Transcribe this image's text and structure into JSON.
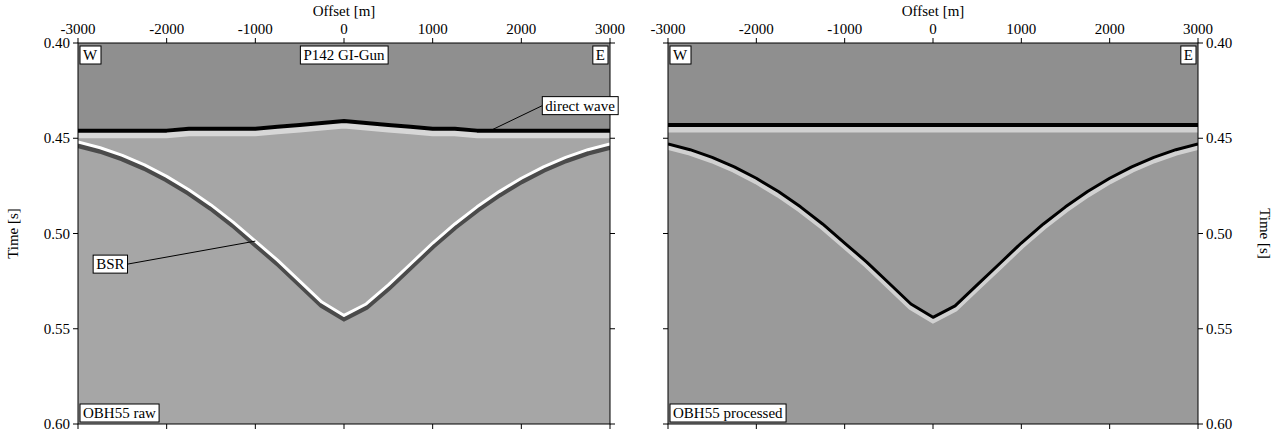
{
  "chart_data": [
    {
      "type": "line",
      "title": "P142 GI-Gun",
      "panel_label": "OBH55 raw",
      "west_label": "W",
      "east_label": "E",
      "xlabel": "Offset [m]",
      "ylabel": "Time [s]",
      "xlim": [
        -3000,
        3000
      ],
      "xticks": [
        -3000,
        -2000,
        -1000,
        0,
        1000,
        2000,
        3000
      ],
      "ylim": [
        0.6,
        0.4
      ],
      "yticks": [
        {
          "value": 0.4,
          "label": "0.40"
        },
        0.45,
        {
          "value": 0.5,
          "label": "0.50"
        },
        0.55,
        {
          "value": 0.6,
          "label": "0.60"
        }
      ],
      "x": [
        -3000,
        -2750,
        -2500,
        -2250,
        -2000,
        -1750,
        -1500,
        -1250,
        -1000,
        -750,
        -500,
        -250,
        0,
        250,
        500,
        750,
        1000,
        1250,
        1500,
        1750,
        2000,
        2250,
        2500,
        2750,
        3000
      ],
      "series": [
        {
          "color": "#000000",
          "values": [
            0.446,
            0.446,
            0.446,
            0.446,
            0.446,
            0.445,
            0.445,
            0.445,
            0.445,
            0.444,
            0.443,
            0.442,
            0.441,
            0.442,
            0.443,
            0.444,
            0.445,
            0.445,
            0.446,
            0.446,
            0.446,
            0.446,
            0.446,
            0.446,
            0.446
          ]
        },
        {
          "color": "#ffffff",
          "values": [
            0.452,
            0.455,
            0.459,
            0.464,
            0.47,
            0.477,
            0.485,
            0.494,
            0.504,
            0.514,
            0.525,
            0.536,
            0.543,
            0.537,
            0.527,
            0.516,
            0.505,
            0.495,
            0.486,
            0.478,
            0.471,
            0.465,
            0.46,
            0.456,
            0.453
          ]
        }
      ],
      "annotations": [
        {
          "text": "direct wave",
          "x": 1650,
          "y": 0.446
        },
        {
          "text": "BSR",
          "x": -1000,
          "y": 0.504
        }
      ]
    },
    {
      "type": "line",
      "panel_label": "OBH55 processed",
      "west_label": "W",
      "east_label": "E",
      "xlabel": "Offset [m]",
      "ylabel": "Time [s]",
      "xlim": [
        -3000,
        3000
      ],
      "xticks": [
        -3000,
        -2000,
        -1000,
        0,
        1000,
        2000,
        3000
      ],
      "ylim": [
        0.6,
        0.4
      ],
      "yticks": [
        {
          "value": 0.4,
          "label": "0.40"
        },
        0.45,
        {
          "value": 0.5,
          "label": "0.50"
        },
        0.55,
        {
          "value": 0.6,
          "label": "0.60"
        }
      ],
      "x": [
        -3000,
        -2750,
        -2500,
        -2250,
        -2000,
        -1750,
        -1500,
        -1250,
        -1000,
        -750,
        -500,
        -250,
        0,
        250,
        500,
        750,
        1000,
        1250,
        1500,
        1750,
        2000,
        2250,
        2500,
        2750,
        3000
      ],
      "series": [
        {
          "color": "#000000",
          "values": [
            0.443,
            0.443,
            0.443,
            0.443,
            0.443,
            0.443,
            0.443,
            0.443,
            0.443,
            0.443,
            0.443,
            0.443,
            0.443,
            0.443,
            0.443,
            0.443,
            0.443,
            0.443,
            0.443,
            0.443,
            0.443,
            0.443,
            0.443,
            0.443,
            0.443
          ]
        },
        {
          "color": "#000000",
          "values": [
            0.453,
            0.456,
            0.46,
            0.465,
            0.471,
            0.478,
            0.486,
            0.495,
            0.505,
            0.515,
            0.526,
            0.537,
            0.544,
            0.538,
            0.527,
            0.516,
            0.505,
            0.495,
            0.486,
            0.478,
            0.471,
            0.465,
            0.46,
            0.456,
            0.453
          ]
        }
      ]
    }
  ]
}
